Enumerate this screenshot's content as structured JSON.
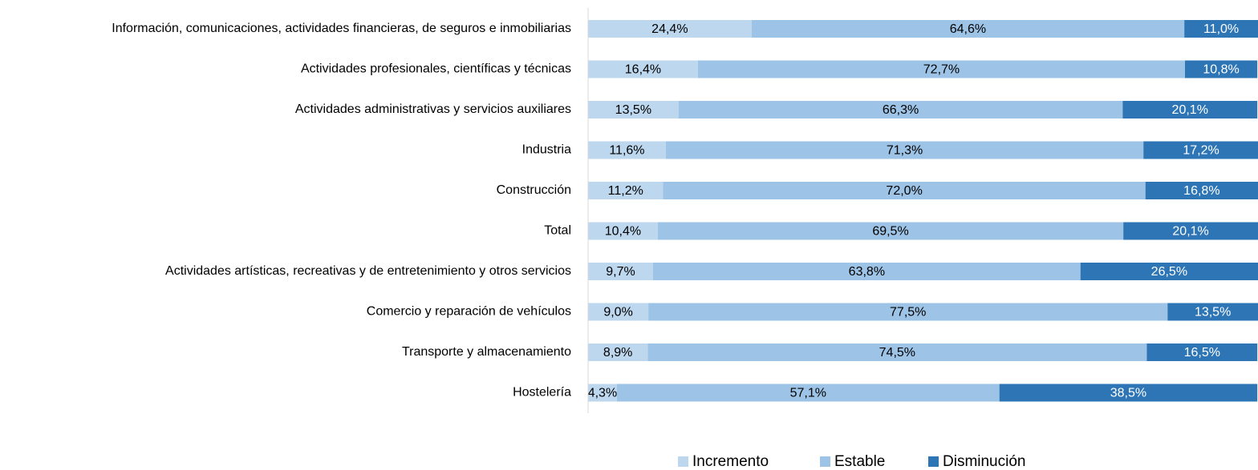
{
  "chart_data": {
    "type": "stacked-barh",
    "categories": [
      "Información, comunicaciones, actividades financieras, de seguros e inmobiliarias",
      "Actividades profesionales, científicas y técnicas",
      "Actividades administrativas y servicios auxiliares",
      "Industria",
      "Construcción",
      "Total",
      "Actividades artísticas, recreativas y de entretenimiento y otros servicios",
      "Comercio y reparación de vehículos",
      "Transporte y almacenamiento",
      "Hostelería"
    ],
    "series": [
      {
        "name": "Incremento",
        "color": "#bdd7ee",
        "label_color": "#000000",
        "values": [
          24.4,
          16.4,
          13.5,
          11.6,
          11.2,
          10.4,
          9.7,
          9.0,
          8.9,
          4.3
        ],
        "value_labels": [
          "24,4%",
          "16,4%",
          "13,5%",
          "11,6%",
          "11,2%",
          "10,4%",
          "9,7%",
          "9,0%",
          "8,9%",
          "4,3%"
        ]
      },
      {
        "name": "Estable",
        "color": "#9dc3e6",
        "label_color": "#000000",
        "values": [
          64.6,
          72.7,
          66.3,
          71.3,
          72.0,
          69.5,
          63.8,
          77.5,
          74.5,
          57.1
        ],
        "value_labels": [
          "64,6%",
          "72,7%",
          "66,3%",
          "71,3%",
          "72,0%",
          "69,5%",
          "63,8%",
          "77,5%",
          "74,5%",
          "57,1%"
        ]
      },
      {
        "name": "Disminución",
        "color": "#2e75b6",
        "label_color": "#ffffff",
        "values": [
          11.0,
          10.8,
          20.1,
          17.2,
          16.8,
          20.1,
          26.5,
          13.5,
          16.5,
          38.5
        ],
        "value_labels": [
          "11,0%",
          "10,8%",
          "20,1%",
          "17,2%",
          "16,8%",
          "20,1%",
          "26,5%",
          "13,5%",
          "16,5%",
          "38,5%"
        ]
      }
    ],
    "xlim": [
      0,
      100
    ],
    "legend": "bottom"
  }
}
